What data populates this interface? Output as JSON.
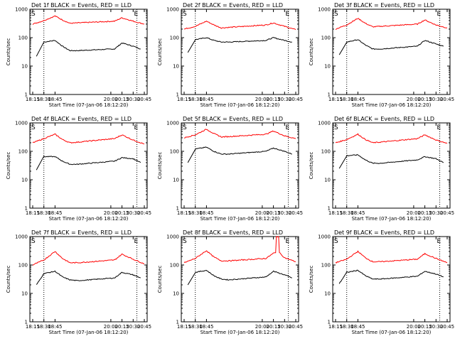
{
  "chart_data": [
    {
      "type": "line",
      "title": "Det 1f BLACK = Events, RED = LLD",
      "xlabel": "Start Time (07-Jan-06 18:12:20)",
      "ylabel": "Counts/sec",
      "x_ticks": [
        "18:15",
        "18:30",
        "18:45",
        "20:00",
        "20:15",
        "20:30",
        "20:45"
      ],
      "y_ticks": [
        "1",
        "10",
        "100",
        "1000"
      ],
      "ylim": [
        1,
        1000
      ],
      "y_scale": "log",
      "markers": {
        "left": "S",
        "right": "E"
      },
      "series": [
        {
          "color": "#000000",
          "x": [
            "18:20",
            "18:30",
            "18:45",
            "18:55",
            "19:05",
            "19:15",
            "20:05",
            "20:15",
            "20:30",
            "20:40"
          ],
          "values": [
            22,
            70,
            80,
            50,
            35,
            35,
            40,
            65,
            50,
            40
          ]
        },
        {
          "color": "#ff0000",
          "x": [
            "18:15",
            "18:30",
            "18:45",
            "18:55",
            "19:05",
            "19:15",
            "20:05",
            "20:15",
            "20:30",
            "20:45"
          ],
          "values": [
            300,
            400,
            580,
            420,
            320,
            330,
            380,
            500,
            380,
            300
          ]
        }
      ]
    },
    {
      "type": "line",
      "title": "Det 2f BLACK = Events, RED = LLD",
      "xlabel": "Start Time (07-Jan-06 18:12:20)",
      "ylabel": "Counts/sec",
      "x_ticks": [
        "18:15",
        "18:30",
        "18:45",
        "20:00",
        "20:15",
        "20:30",
        "20:45"
      ],
      "y_ticks": [
        "1",
        "10",
        "100",
        "1000"
      ],
      "ylim": [
        1,
        1000
      ],
      "y_scale": "log",
      "markers": {
        "left": "S",
        "right": "E"
      },
      "series": [
        {
          "color": "#000000",
          "x": [
            "18:20",
            "18:30",
            "18:45",
            "18:55",
            "19:05",
            "19:15",
            "20:05",
            "20:15",
            "20:30",
            "20:40"
          ],
          "values": [
            30,
            85,
            100,
            80,
            70,
            70,
            80,
            100,
            80,
            70
          ]
        },
        {
          "color": "#ff0000",
          "x": [
            "18:15",
            "18:30",
            "18:45",
            "18:55",
            "19:05",
            "19:15",
            "20:05",
            "20:15",
            "20:30",
            "20:45"
          ],
          "values": [
            200,
            250,
            380,
            280,
            220,
            230,
            280,
            330,
            250,
            190
          ]
        }
      ]
    },
    {
      "type": "line",
      "title": "Det 3f BLACK = Events, RED = LLD",
      "xlabel": "Start Time (07-Jan-06 18:12:20)",
      "ylabel": "Counts/sec",
      "x_ticks": [
        "18:15",
        "18:30",
        "18:45",
        "20:00",
        "20:15",
        "20:30",
        "20:45"
      ],
      "y_ticks": [
        "1",
        "10",
        "100",
        "1000"
      ],
      "ylim": [
        1,
        1000
      ],
      "y_scale": "log",
      "markers": {
        "left": "S",
        "right": "E"
      },
      "series": [
        {
          "color": "#000000",
          "x": [
            "18:20",
            "18:30",
            "18:45",
            "18:55",
            "19:05",
            "19:15",
            "20:05",
            "20:15",
            "20:30",
            "20:40"
          ],
          "values": [
            25,
            70,
            85,
            55,
            40,
            40,
            50,
            80,
            60,
            50
          ]
        },
        {
          "color": "#ff0000",
          "x": [
            "18:15",
            "18:30",
            "18:45",
            "18:55",
            "19:05",
            "19:15",
            "20:05",
            "20:15",
            "20:30",
            "20:45"
          ],
          "values": [
            200,
            280,
            480,
            320,
            240,
            250,
            300,
            420,
            280,
            220
          ]
        }
      ]
    },
    {
      "type": "line",
      "title": "Det 4f BLACK = Events, RED = LLD",
      "xlabel": "Start Time (07-Jan-06 18:12:20)",
      "ylabel": "Counts/sec",
      "x_ticks": [
        "18:15",
        "18:30",
        "18:45",
        "20:00",
        "20:15",
        "20:30",
        "20:45"
      ],
      "y_ticks": [
        "1",
        "10",
        "100",
        "1000"
      ],
      "ylim": [
        1,
        1000
      ],
      "y_scale": "log",
      "markers": {
        "left": "S",
        "right": "E"
      },
      "series": [
        {
          "color": "#000000",
          "x": [
            "18:20",
            "18:30",
            "18:45",
            "18:55",
            "19:05",
            "19:15",
            "20:05",
            "20:15",
            "20:30",
            "20:40"
          ],
          "values": [
            22,
            65,
            65,
            45,
            35,
            35,
            45,
            60,
            55,
            40
          ]
        },
        {
          "color": "#ff0000",
          "x": [
            "18:15",
            "18:30",
            "18:45",
            "18:55",
            "19:05",
            "19:15",
            "20:05",
            "20:15",
            "20:30",
            "20:45"
          ],
          "values": [
            200,
            280,
            400,
            260,
            200,
            210,
            280,
            380,
            250,
            180
          ]
        }
      ]
    },
    {
      "type": "line",
      "title": "Det 5f BLACK = Events, RED = LLD",
      "xlabel": "Start Time (07-Jan-06 18:12:20)",
      "ylabel": "Counts/sec",
      "x_ticks": [
        "18:15",
        "18:30",
        "18:45",
        "20:00",
        "20:15",
        "20:30",
        "20:45"
      ],
      "y_ticks": [
        "1",
        "10",
        "100",
        "1000"
      ],
      "ylim": [
        1,
        1000
      ],
      "y_scale": "log",
      "markers": {
        "left": "S",
        "right": "E"
      },
      "series": [
        {
          "color": "#000000",
          "x": [
            "18:20",
            "18:30",
            "18:45",
            "18:55",
            "19:05",
            "19:15",
            "20:05",
            "20:15",
            "20:30",
            "20:40"
          ],
          "values": [
            40,
            120,
            140,
            100,
            80,
            80,
            100,
            130,
            100,
            80
          ]
        },
        {
          "color": "#ff0000",
          "x": [
            "18:15",
            "18:30",
            "18:45",
            "18:55",
            "19:05",
            "19:15",
            "20:05",
            "20:15",
            "20:30",
            "20:45"
          ],
          "values": [
            300,
            380,
            600,
            420,
            320,
            330,
            400,
            520,
            350,
            280
          ]
        }
      ]
    },
    {
      "type": "line",
      "title": "Det 6f BLACK = Events, RED = LLD",
      "xlabel": "Start Time (07-Jan-06 18:12:20)",
      "ylabel": "Counts/sec",
      "x_ticks": [
        "18:15",
        "18:30",
        "18:45",
        "20:00",
        "20:15",
        "20:30",
        "20:45"
      ],
      "y_ticks": [
        "1",
        "10",
        "100",
        "1000"
      ],
      "ylim": [
        1,
        1000
      ],
      "y_scale": "log",
      "markers": {
        "left": "S",
        "right": "E"
      },
      "series": [
        {
          "color": "#000000",
          "x": [
            "18:20",
            "18:30",
            "18:45",
            "18:55",
            "19:05",
            "19:15",
            "20:05",
            "20:15",
            "20:30",
            "20:40"
          ],
          "values": [
            25,
            70,
            75,
            50,
            38,
            38,
            50,
            65,
            55,
            40
          ]
        },
        {
          "color": "#ff0000",
          "x": [
            "18:15",
            "18:30",
            "18:45",
            "18:55",
            "19:05",
            "19:15",
            "20:05",
            "20:15",
            "20:30",
            "20:45"
          ],
          "values": [
            200,
            260,
            400,
            260,
            200,
            210,
            280,
            380,
            250,
            190
          ]
        }
      ]
    },
    {
      "type": "line",
      "title": "Det 7f BLACK = Events, RED = LLD",
      "xlabel": "Start Time (07-Jan-06 18:12:20)",
      "ylabel": "Counts/sec",
      "x_ticks": [
        "18:15",
        "18:30",
        "18:45",
        "20:00",
        "20:15",
        "20:30",
        "20:45"
      ],
      "y_ticks": [
        "1",
        "10",
        "100",
        "1000"
      ],
      "ylim": [
        1,
        1000
      ],
      "y_scale": "log",
      "markers": {
        "left": "S",
        "right": "E"
      },
      "series": [
        {
          "color": "#000000",
          "x": [
            "18:20",
            "18:30",
            "18:45",
            "18:55",
            "19:05",
            "19:15",
            "20:05",
            "20:15",
            "20:30",
            "20:40"
          ],
          "values": [
            20,
            50,
            60,
            38,
            30,
            28,
            35,
            55,
            45,
            35
          ]
        },
        {
          "color": "#ff0000",
          "x": [
            "18:15",
            "18:30",
            "18:45",
            "18:55",
            "19:05",
            "19:15",
            "20:05",
            "20:15",
            "20:30",
            "20:45"
          ],
          "values": [
            100,
            150,
            300,
            170,
            120,
            120,
            150,
            240,
            160,
            110
          ]
        }
      ]
    },
    {
      "type": "line",
      "title": "Det 8f BLACK = Events, RED = LLD",
      "xlabel": "Start Time (07-Jan-06 18:12:20)",
      "ylabel": "Counts/sec",
      "x_ticks": [
        "18:15",
        "18:30",
        "18:45",
        "20:00",
        "20:15",
        "20:30",
        "20:45"
      ],
      "y_ticks": [
        "1",
        "10",
        "100",
        "1000"
      ],
      "ylim": [
        1,
        1000
      ],
      "y_scale": "log",
      "markers": {
        "left": "S",
        "right": "E"
      },
      "series": [
        {
          "color": "#000000",
          "x": [
            "18:20",
            "18:30",
            "18:45",
            "18:55",
            "19:05",
            "19:15",
            "20:05",
            "20:15",
            "20:30",
            "20:40"
          ],
          "values": [
            20,
            55,
            65,
            42,
            32,
            30,
            38,
            60,
            45,
            35
          ]
        },
        {
          "color": "#ff0000",
          "x": [
            "18:15",
            "18:30",
            "18:45",
            "18:55",
            "19:05",
            "19:15",
            "20:05",
            "20:15",
            "20:18",
            "20:19",
            "20:22",
            "20:23",
            "20:30",
            "20:45"
          ],
          "values": [
            120,
            170,
            320,
            190,
            140,
            140,
            170,
            260,
            270,
            1000,
            1000,
            270,
            180,
            130
          ]
        }
      ]
    },
    {
      "type": "line",
      "title": "Det 9f BLACK = Events, RED = LLD",
      "xlabel": "Start Time (07-Jan-06 18:12:20)",
      "ylabel": "Counts/sec",
      "x_ticks": [
        "18:15",
        "18:30",
        "18:45",
        "20:00",
        "20:15",
        "20:30",
        "20:45"
      ],
      "y_ticks": [
        "1",
        "10",
        "100",
        "1000"
      ],
      "ylim": [
        1,
        1000
      ],
      "y_scale": "log",
      "markers": {
        "left": "S",
        "right": "E"
      },
      "series": [
        {
          "color": "#000000",
          "x": [
            "18:20",
            "18:30",
            "18:45",
            "18:55",
            "19:05",
            "19:15",
            "20:05",
            "20:15",
            "20:30",
            "20:40"
          ],
          "values": [
            22,
            55,
            65,
            42,
            32,
            32,
            40,
            60,
            48,
            38
          ]
        },
        {
          "color": "#ff0000",
          "x": [
            "18:15",
            "18:30",
            "18:45",
            "18:55",
            "19:05",
            "19:15",
            "20:05",
            "20:15",
            "20:30",
            "20:45"
          ],
          "values": [
            120,
            160,
            300,
            180,
            130,
            130,
            160,
            250,
            170,
            120
          ]
        }
      ]
    }
  ]
}
